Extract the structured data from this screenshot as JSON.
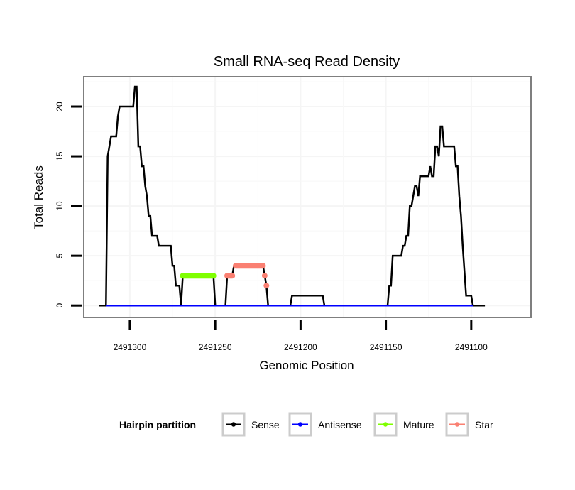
{
  "chart_data": {
    "type": "line",
    "title": "Small RNA-seq Read Density",
    "xlabel": "Genomic Position",
    "ylabel": "Total Reads",
    "x_reversed": true,
    "xlim": [
      2491327,
      2491065
    ],
    "ylim": [
      -1.2,
      23
    ],
    "x_ticks": [
      2491300,
      2491250,
      2491200,
      2491150,
      2491100
    ],
    "x_tick_labels": [
      "2491300",
      "2491250",
      "2491200",
      "2491150",
      "2491100"
    ],
    "y_ticks": [
      0,
      5,
      10,
      15,
      20
    ],
    "y_tick_labels": [
      "0",
      "5",
      "10",
      "15",
      "20"
    ],
    "grid": true,
    "legend": {
      "title": "Hairpin partition",
      "placement": "bottom",
      "entries": [
        {
          "label": "Sense",
          "color": "#000000"
        },
        {
          "label": "Antisense",
          "color": "#0000ff"
        },
        {
          "label": "Mature",
          "color": "#7fff00"
        },
        {
          "label": "Star",
          "color": "#fa8072"
        }
      ]
    },
    "series": [
      {
        "name": "Sense",
        "color": "#000000",
        "points": [
          [
            2491318,
            0
          ],
          [
            2491314,
            0
          ],
          [
            2491313,
            15
          ],
          [
            2491311,
            17
          ],
          [
            2491308,
            17
          ],
          [
            2491307,
            19
          ],
          [
            2491306,
            20
          ],
          [
            2491298,
            20
          ],
          [
            2491297,
            22
          ],
          [
            2491296,
            22
          ],
          [
            2491295,
            16
          ],
          [
            2491294,
            16
          ],
          [
            2491293,
            14
          ],
          [
            2491292,
            14
          ],
          [
            2491291,
            12
          ],
          [
            2491290,
            11
          ],
          [
            2491289,
            9
          ],
          [
            2491288,
            9
          ],
          [
            2491287,
            7
          ],
          [
            2491284,
            7
          ],
          [
            2491283,
            6
          ],
          [
            2491276,
            6
          ],
          [
            2491275,
            4
          ],
          [
            2491274,
            4
          ],
          [
            2491273,
            2
          ],
          [
            2491271,
            2
          ],
          [
            2491270,
            0
          ],
          [
            2491269,
            3
          ],
          [
            2491251,
            3
          ],
          [
            2491250,
            0
          ],
          [
            2491244,
            0
          ],
          [
            2491243,
            3
          ],
          [
            2491240,
            3
          ],
          [
            2491239,
            4
          ],
          [
            2491222,
            4
          ],
          [
            2491221,
            3
          ],
          [
            2491220,
            2
          ],
          [
            2491219,
            0
          ],
          [
            2491206,
            0
          ],
          [
            2491205,
            1
          ],
          [
            2491187,
            1
          ],
          [
            2491186,
            0
          ],
          [
            2491149,
            0
          ],
          [
            2491148,
            2
          ],
          [
            2491147,
            2
          ],
          [
            2491146,
            5
          ],
          [
            2491141,
            5
          ],
          [
            2491140,
            6
          ],
          [
            2491139,
            6
          ],
          [
            2491138,
            7
          ],
          [
            2491137,
            7
          ],
          [
            2491136,
            10
          ],
          [
            2491135,
            10
          ],
          [
            2491134,
            11
          ],
          [
            2491133,
            12
          ],
          [
            2491132,
            12
          ],
          [
            2491131,
            11
          ],
          [
            2491130,
            13
          ],
          [
            2491125,
            13
          ],
          [
            2491124,
            14
          ],
          [
            2491123,
            13
          ],
          [
            2491122,
            13
          ],
          [
            2491121,
            16
          ],
          [
            2491120,
            16
          ],
          [
            2491119,
            15
          ],
          [
            2491118,
            18
          ],
          [
            2491117,
            18
          ],
          [
            2491116,
            16
          ],
          [
            2491110,
            16
          ],
          [
            2491109,
            14
          ],
          [
            2491108,
            14
          ],
          [
            2491107,
            11
          ],
          [
            2491106,
            9
          ],
          [
            2491105,
            6
          ],
          [
            2491103,
            1
          ],
          [
            2491100,
            1
          ],
          [
            2491099,
            0
          ],
          [
            2491092,
            0
          ]
        ]
      },
      {
        "name": "Antisense",
        "color": "#0000ff",
        "points": [
          [
            2491314,
            0
          ],
          [
            2491099,
            0
          ]
        ]
      },
      {
        "name": "Mature",
        "color": "#7fff00",
        "points": [
          [
            2491269,
            3
          ],
          [
            2491251,
            3
          ]
        ]
      },
      {
        "name": "Star",
        "color": "#fa8072",
        "points": [
          [
            2491243,
            3
          ],
          [
            2491240,
            3
          ],
          [
            2491239,
            4
          ],
          [
            2491222,
            4
          ],
          [
            2491221,
            3
          ],
          [
            2491220,
            2
          ]
        ],
        "segments": [
          [
            [
              2491243,
              3
            ],
            [
              2491240,
              3
            ]
          ],
          [
            [
              2491238,
              4
            ],
            [
              2491222,
              4
            ]
          ],
          [
            [
              2491221,
              3
            ]
          ],
          [
            [
              2491220,
              2
            ]
          ]
        ]
      }
    ]
  }
}
